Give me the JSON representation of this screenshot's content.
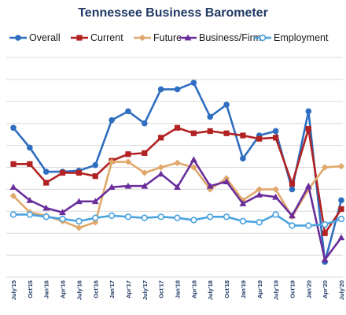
{
  "chart_data": {
    "type": "line",
    "title": "Tennessee Business Barometer",
    "categories": [
      "July'15",
      "Oct'15",
      "Jan'16",
      "Apr'16",
      "July'16",
      "Oct'16",
      "Jan'17",
      "Apr'17",
      "July'17",
      "Oct'17",
      "Jan'18",
      "Apr'18",
      "July'18",
      "Oct'18",
      "Jan'19",
      "Apr'19",
      "July'19",
      "Oct'19",
      "Jan'20",
      "Apr'20",
      "July'20"
    ],
    "x_tick_labels": [
      "July'15",
      "Oct'15",
      "Jan'16",
      "Apr'16",
      "July'16",
      "Oct'16",
      "Jan'17",
      "Apr'17",
      "July'17",
      "Oct'17",
      "Jan'18",
      "Apr'18",
      "July'18",
      "Oct'18",
      "Jan'19",
      "Apr'19",
      "July'19",
      "Oct'19",
      "Jan'20",
      "Apr'20",
      "July'20"
    ],
    "grid": true,
    "legend_position": "top",
    "ylim": [
      -100,
      100
    ],
    "series": [
      {
        "name": "Overall",
        "color": "#2e6dbf",
        "marker": "circle",
        "values": [
          36,
          18,
          -4,
          -4,
          -3,
          2,
          43,
          51,
          40,
          71,
          71,
          77,
          46,
          57,
          8,
          29,
          33,
          -20,
          51,
          -86,
          -30
        ]
      },
      {
        "name": "Current",
        "color": "#b22222",
        "marker": "square",
        "values": [
          3,
          3,
          -14,
          -5,
          -5,
          -8,
          6,
          12,
          13,
          27,
          36,
          31,
          33,
          31,
          29,
          26,
          27,
          -15,
          35,
          -60,
          -38
        ]
      },
      {
        "name": "Future",
        "color": "#e0a86a",
        "marker": "diamond",
        "values": [
          -26,
          -41,
          -44,
          -49,
          -55,
          -50,
          5,
          5,
          -5,
          0,
          4,
          0,
          -20,
          -10,
          -30,
          -20,
          -20,
          -45,
          -20,
          0,
          1
        ]
      },
      {
        "name": "Business/Firm",
        "color": "#6a2e9a",
        "marker": "triangle",
        "values": [
          -18,
          -30,
          -37,
          -41,
          -31,
          -31,
          -18,
          -17,
          -17,
          -6,
          -18,
          7,
          -17,
          -13,
          -33,
          -25,
          -27,
          -44,
          -17,
          -84,
          -64
        ]
      },
      {
        "name": "Employment",
        "color": "#4aa3df",
        "marker": "open-circle",
        "values": [
          -43,
          -43,
          -45,
          -47,
          -49,
          -46,
          -44,
          -45,
          -46,
          -45,
          -46,
          -48,
          -45,
          -45,
          -49,
          -50,
          -43,
          -53,
          -53,
          -52,
          -47
        ]
      }
    ]
  }
}
